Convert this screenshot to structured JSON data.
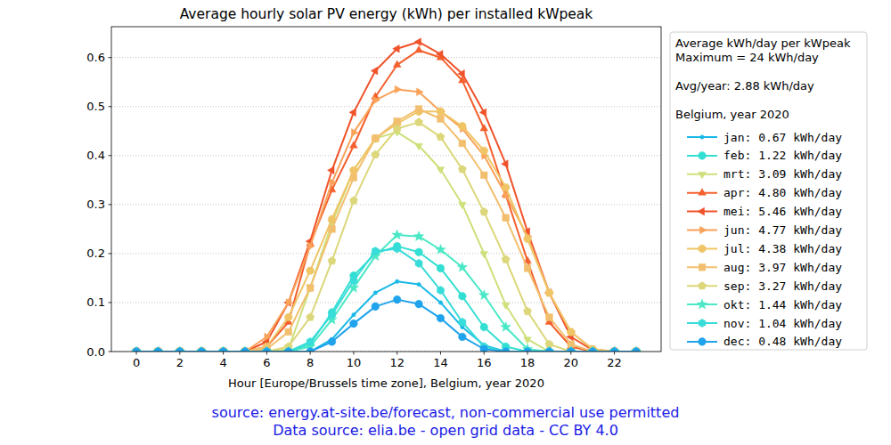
{
  "chart_data": {
    "type": "line",
    "title": "Average hourly solar PV energy (kWh) per installed kWpeak",
    "x_label": "Hour [Europe/Brussels time zone], Belgium, year 2020",
    "source": [
      "source: energy.at-site.be/forecast, non-commercial use permitted",
      "Data source: elia.be - open grid data - CC BY 4.0"
    ],
    "legend_title": [
      [
        "Average kWh/day per kWpeak",
        "Maximum = 24 kWh/day"
      ],
      [
        "Avg/year: 2.88 kWh/day"
      ],
      [
        "Belgium, year 2020"
      ]
    ],
    "legend": "right",
    "grid": true,
    "x": [
      0,
      1,
      2,
      3,
      4,
      5,
      6,
      7,
      8,
      9,
      10,
      11,
      12,
      13,
      14,
      15,
      16,
      17,
      18,
      19,
      20,
      21,
      22,
      23
    ],
    "xlim": [
      -1.15,
      24.15
    ],
    "xticks": [
      0,
      2,
      4,
      6,
      8,
      10,
      12,
      14,
      16,
      18,
      20,
      22
    ],
    "ylim": [
      0,
      0.663
    ],
    "yticks": [
      {
        "value": 0,
        "label": "0.0"
      },
      {
        "value": 0.1,
        "label": "0.1"
      },
      {
        "value": 0.2,
        "label": "0.2"
      },
      {
        "value": 0.3,
        "label": "0.3"
      },
      {
        "value": 0.4,
        "label": "0.4"
      },
      {
        "value": 0.5,
        "label": "0.5"
      },
      {
        "value": 0.6,
        "label": "0.6"
      }
    ],
    "series": [
      {
        "name": "jan: 0.67 kWh/day",
        "color": "#1ab9e6",
        "marker": "point",
        "values": [
          0,
          0,
          0,
          0,
          0,
          0,
          0,
          0,
          0,
          0.025,
          0.075,
          0.12,
          0.143,
          0.137,
          0.1,
          0.05,
          0.013,
          0,
          0,
          0,
          0,
          0,
          0,
          0
        ]
      },
      {
        "name": "feb: 1.22 kWh/day",
        "color": "#33dfd2",
        "marker": "circle",
        "values": [
          0,
          0,
          0,
          0,
          0,
          0,
          0,
          0,
          0.015,
          0.08,
          0.155,
          0.2,
          0.215,
          0.203,
          0.17,
          0.113,
          0.05,
          0.01,
          0,
          0,
          0,
          0,
          0,
          0
        ]
      },
      {
        "name": "mrt: 3.09 kWh/day",
        "color": "#cde07a",
        "marker": "triangle_down",
        "values": [
          0,
          0,
          0,
          0,
          0,
          0,
          0,
          0.005,
          0.13,
          0.262,
          0.37,
          0.435,
          0.448,
          0.42,
          0.372,
          0.3,
          0.2,
          0.095,
          0.025,
          0,
          0,
          0,
          0,
          0
        ]
      },
      {
        "name": "apr: 4.80 kWh/day",
        "color": "#f4602e",
        "marker": "triangle_up",
        "values": [
          0,
          0,
          0,
          0,
          0,
          0,
          0.01,
          0.06,
          0.22,
          0.33,
          0.42,
          0.52,
          0.585,
          0.615,
          0.6,
          0.553,
          0.455,
          0.32,
          0.185,
          0.06,
          0.01,
          0,
          0,
          0
        ]
      },
      {
        "name": "mei: 5.46 kWh/day",
        "color": "#f0522a",
        "marker": "triangle_left",
        "values": [
          0,
          0,
          0,
          0,
          0,
          0,
          0.02,
          0.1,
          0.225,
          0.37,
          0.488,
          0.573,
          0.618,
          0.632,
          0.607,
          0.567,
          0.488,
          0.383,
          0.245,
          0.12,
          0.03,
          0.003,
          0,
          0
        ]
      },
      {
        "name": "jun: 4.77 kWh/day",
        "color": "#f9a258",
        "marker": "triangle_right",
        "values": [
          0,
          0,
          0,
          0,
          0,
          0,
          0.03,
          0.1,
          0.215,
          0.345,
          0.447,
          0.513,
          0.535,
          0.53,
          0.49,
          0.455,
          0.4,
          0.32,
          0.235,
          0.12,
          0.04,
          0.005,
          0,
          0
        ]
      },
      {
        "name": "jul: 4.38 kWh/day",
        "color": "#efc566",
        "marker": "octagon",
        "values": [
          0,
          0,
          0,
          0,
          0,
          0,
          0.01,
          0.07,
          0.165,
          0.27,
          0.37,
          0.435,
          0.465,
          0.49,
          0.49,
          0.46,
          0.41,
          0.335,
          0.23,
          0.12,
          0.04,
          0.005,
          0,
          0
        ]
      },
      {
        "name": "aug: 3.97 kWh/day",
        "color": "#f2bf6e",
        "marker": "square",
        "values": [
          0,
          0,
          0,
          0,
          0,
          0,
          0.005,
          0.04,
          0.13,
          0.25,
          0.355,
          0.435,
          0.47,
          0.495,
          0.475,
          0.425,
          0.36,
          0.273,
          0.17,
          0.07,
          0.015,
          0,
          0,
          0
        ]
      },
      {
        "name": "sep: 3.27 kWh/day",
        "color": "#dcd77a",
        "marker": "pentagon",
        "values": [
          0,
          0,
          0,
          0,
          0,
          0,
          0,
          0.01,
          0.07,
          0.185,
          0.308,
          0.402,
          0.455,
          0.468,
          0.438,
          0.372,
          0.285,
          0.188,
          0.082,
          0.015,
          0,
          0,
          0,
          0
        ]
      },
      {
        "name": "okt: 1.44 kWh/day",
        "color": "#4ae8c6",
        "marker": "star",
        "values": [
          0,
          0,
          0,
          0,
          0,
          0,
          0,
          0,
          0.01,
          0.065,
          0.13,
          0.195,
          0.238,
          0.235,
          0.208,
          0.172,
          0.115,
          0.05,
          0.005,
          0,
          0,
          0,
          0,
          0
        ]
      },
      {
        "name": "nov: 1.04 kWh/day",
        "color": "#38dcd8",
        "marker": "hexagon",
        "values": [
          0,
          0,
          0,
          0,
          0,
          0,
          0,
          0,
          0.02,
          0.075,
          0.145,
          0.205,
          0.21,
          0.18,
          0.125,
          0.06,
          0.01,
          0,
          0,
          0,
          0,
          0,
          0,
          0
        ]
      },
      {
        "name": "dec: 0.48 kWh/day",
        "color": "#1fa3ec",
        "marker": "circle",
        "values": [
          0,
          0,
          0,
          0,
          0,
          0,
          0,
          0,
          0,
          0.02,
          0.057,
          0.092,
          0.106,
          0.097,
          0.068,
          0.03,
          0.005,
          0,
          0,
          0,
          0,
          0,
          0,
          0
        ]
      }
    ]
  }
}
